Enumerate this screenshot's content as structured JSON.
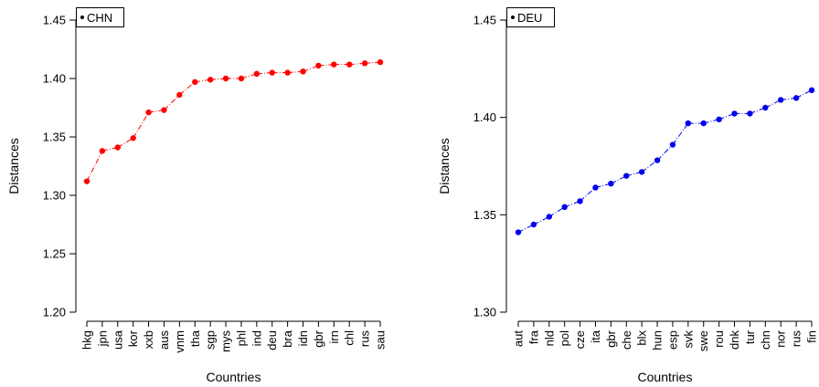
{
  "chart_data": [
    {
      "type": "line",
      "legend": "CHN",
      "legend_position": "top-left",
      "xlabel": "Countries",
      "ylabel": "Distances",
      "ylim": [
        1.2,
        1.45
      ],
      "yticks": [
        "1.20",
        "1.25",
        "1.30",
        "1.35",
        "1.40",
        "1.45"
      ],
      "color": "#ff0000",
      "categories": [
        "hkg",
        "jpn",
        "usa",
        "kor",
        "xxb",
        "aus",
        "vnm",
        "tha",
        "sgp",
        "mys",
        "phl",
        "ind",
        "deu",
        "bra",
        "idn",
        "gbr",
        "irn",
        "chl",
        "rus",
        "sau"
      ],
      "values": [
        1.312,
        1.338,
        1.341,
        1.349,
        1.371,
        1.373,
        1.386,
        1.397,
        1.399,
        1.4,
        1.4,
        1.404,
        1.405,
        1.405,
        1.406,
        1.411,
        1.412,
        1.412,
        1.413,
        1.414
      ]
    },
    {
      "type": "line",
      "legend": "DEU",
      "legend_position": "top-left",
      "xlabel": "Countries",
      "ylabel": "Distances",
      "ylim": [
        1.3,
        1.45
      ],
      "yticks": [
        "1.30",
        "1.35",
        "1.40",
        "1.45"
      ],
      "color": "#0000ee",
      "categories": [
        "aut",
        "fra",
        "nld",
        "pol",
        "cze",
        "ita",
        "gbr",
        "che",
        "blx",
        "hun",
        "esp",
        "svk",
        "swe",
        "rou",
        "dnk",
        "tur",
        "chn",
        "nor",
        "rus",
        "fin"
      ],
      "values": [
        1.341,
        1.345,
        1.349,
        1.354,
        1.357,
        1.364,
        1.366,
        1.37,
        1.372,
        1.378,
        1.386,
        1.397,
        1.397,
        1.399,
        1.402,
        1.402,
        1.405,
        1.409,
        1.41,
        1.414
      ]
    }
  ]
}
